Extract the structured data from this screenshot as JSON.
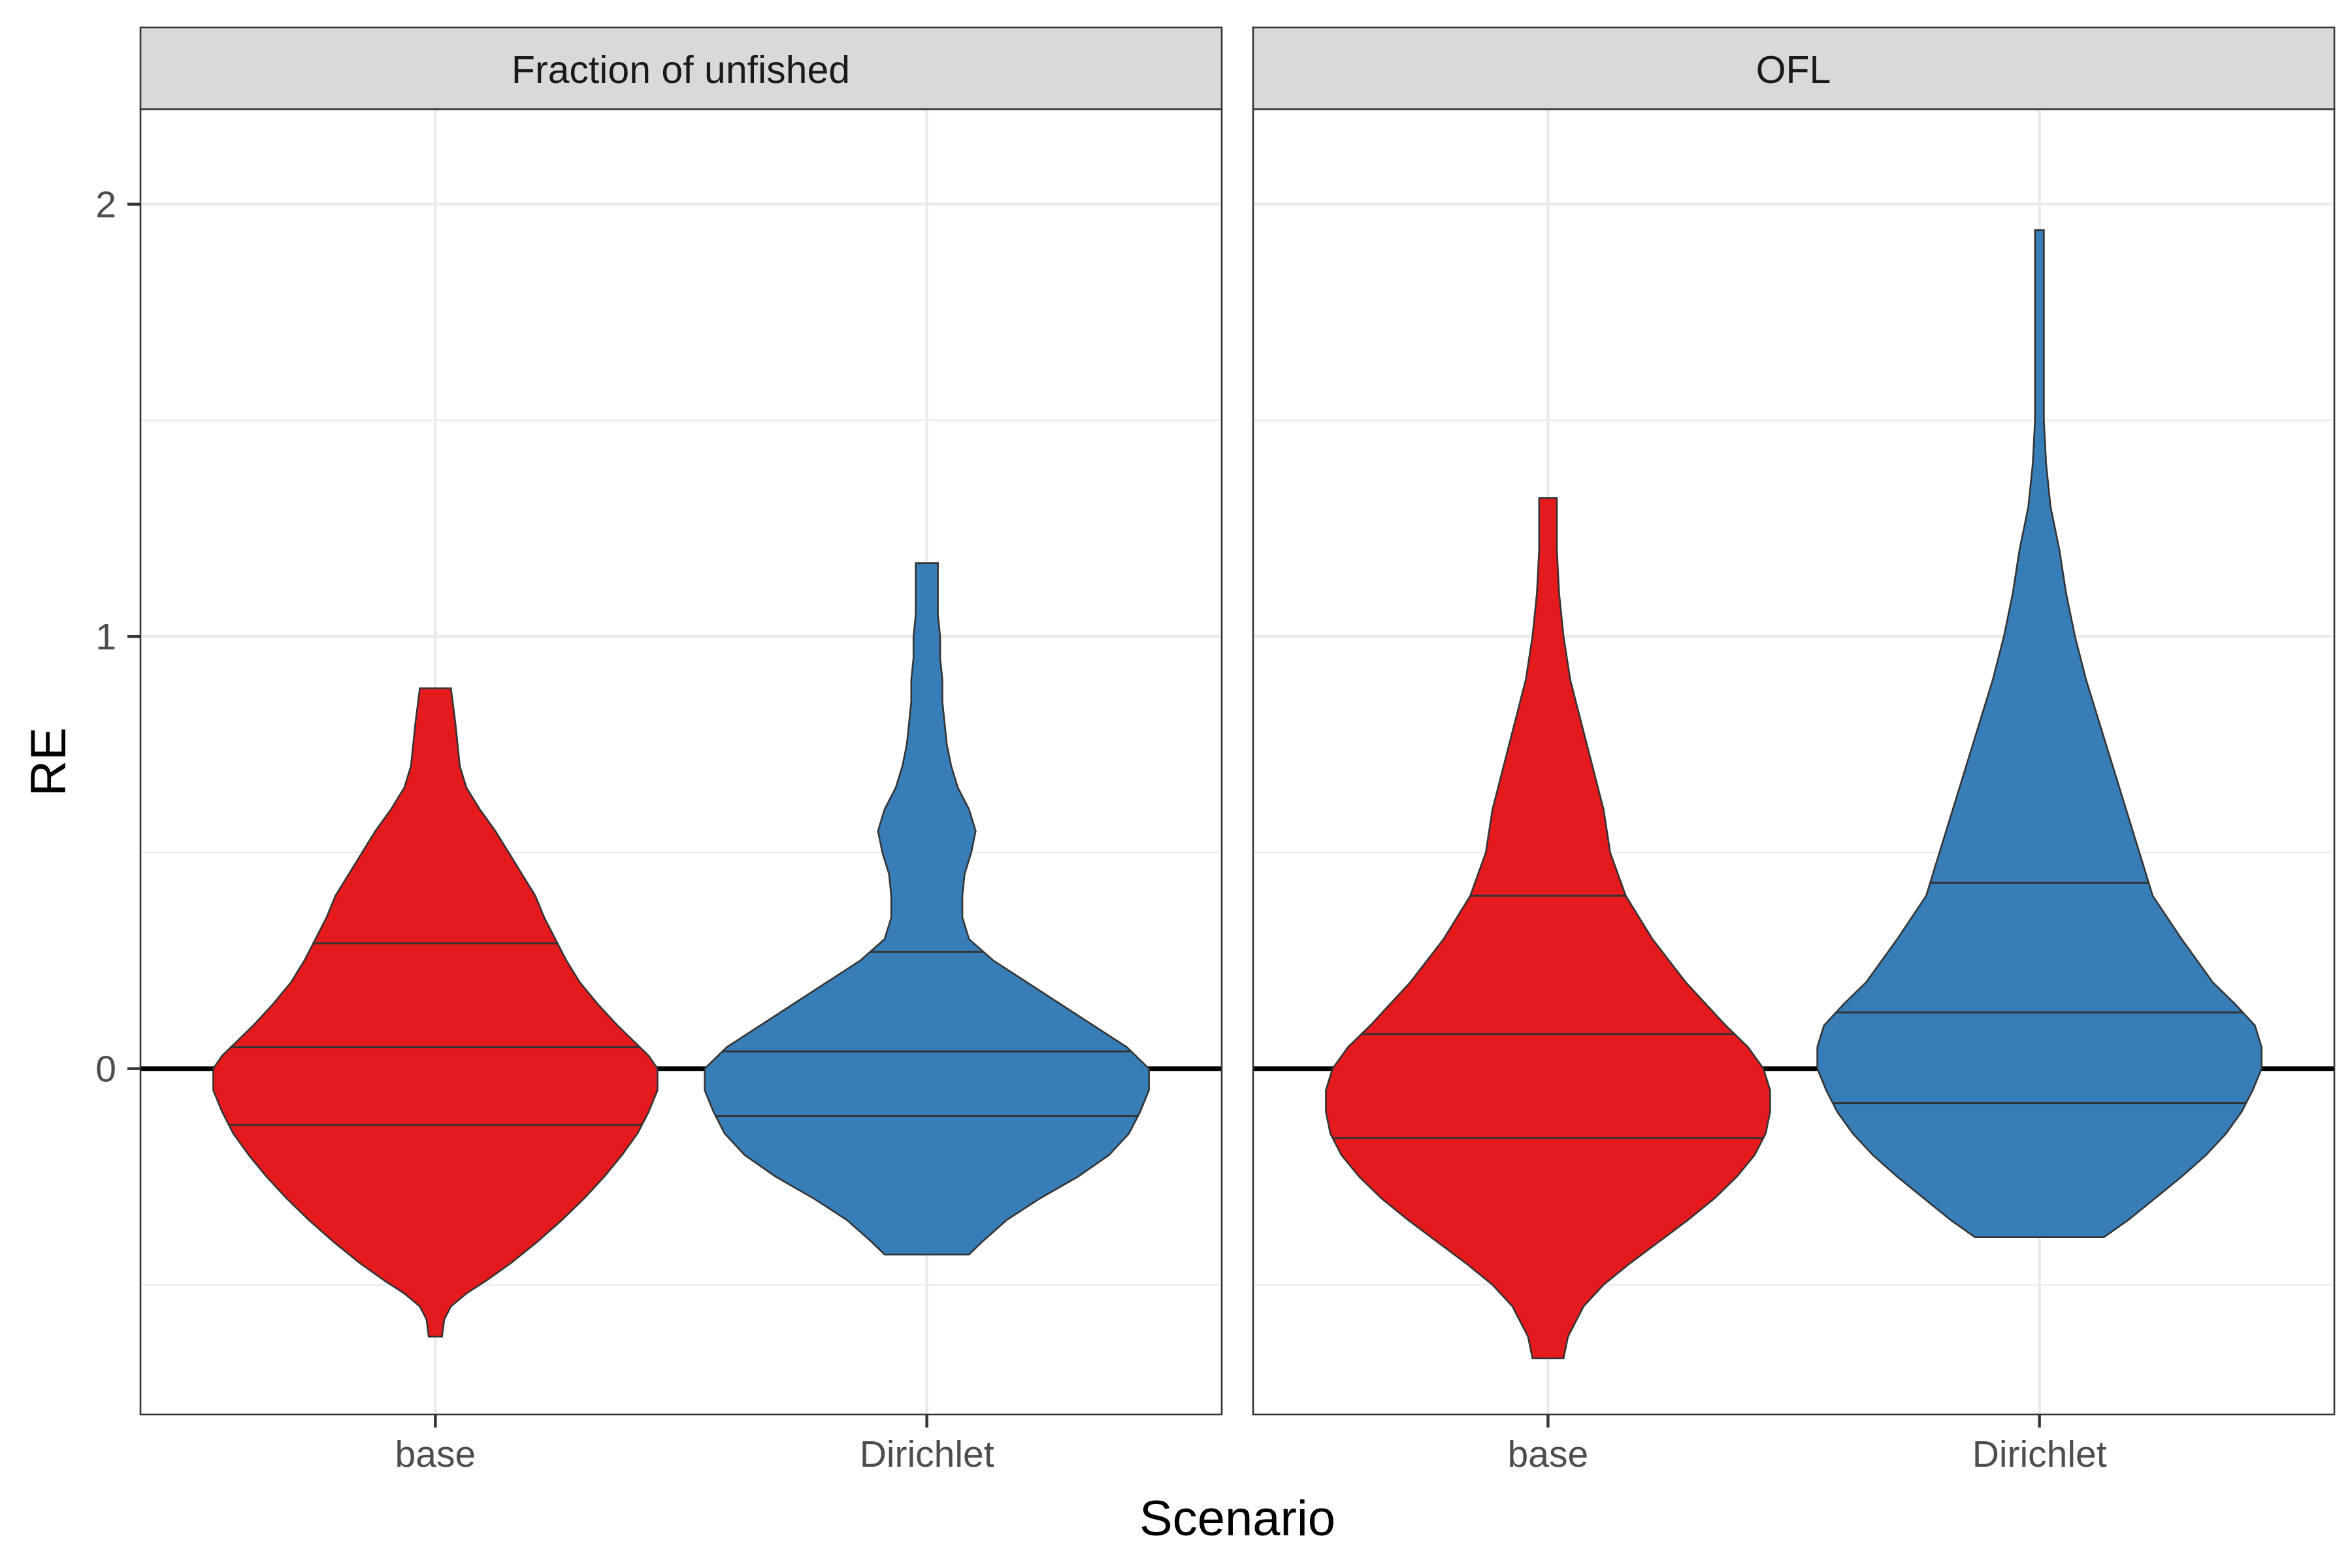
{
  "chart_data": {
    "type": "violin",
    "facets": [
      "Fraction of unfished",
      "OFL"
    ],
    "categories": [
      "base",
      "Dirichlet"
    ],
    "colors": {
      "base": "#E41A1C",
      "Dirichlet": "#377EB8"
    },
    "xlabel": "Scenario",
    "ylabel": "RE",
    "ylim": [
      -0.8,
      2.22
    ],
    "yticks": [
      0,
      1,
      2
    ],
    "yticklabels": [
      "0",
      "1",
      "2"
    ],
    "reference_line_y": 0,
    "grid": true,
    "panels": [
      {
        "facet": "Fraction of unfished",
        "violins": [
          {
            "category": "base",
            "quantiles": [
              -0.13,
              0.05,
              0.29
            ],
            "profile": [
              [
                -0.62,
                0.03
              ],
              [
                -0.58,
                0.04
              ],
              [
                -0.55,
                0.07
              ],
              [
                -0.52,
                0.14
              ],
              [
                -0.49,
                0.23
              ],
              [
                -0.45,
                0.34
              ],
              [
                -0.4,
                0.46
              ],
              [
                -0.35,
                0.57
              ],
              [
                -0.3,
                0.67
              ],
              [
                -0.25,
                0.76
              ],
              [
                -0.2,
                0.84
              ],
              [
                -0.15,
                0.91
              ],
              [
                -0.1,
                0.96
              ],
              [
                -0.05,
                1.0
              ],
              [
                0.0,
                1.0
              ],
              [
                0.03,
                0.96
              ],
              [
                0.06,
                0.9
              ],
              [
                0.1,
                0.82
              ],
              [
                0.15,
                0.73
              ],
              [
                0.2,
                0.65
              ],
              [
                0.25,
                0.59
              ],
              [
                0.3,
                0.54
              ],
              [
                0.35,
                0.49
              ],
              [
                0.4,
                0.45
              ],
              [
                0.45,
                0.39
              ],
              [
                0.5,
                0.33
              ],
              [
                0.55,
                0.27
              ],
              [
                0.6,
                0.2
              ],
              [
                0.65,
                0.14
              ],
              [
                0.7,
                0.11
              ],
              [
                0.75,
                0.1
              ],
              [
                0.8,
                0.09
              ],
              [
                0.84,
                0.08
              ],
              [
                0.88,
                0.07
              ]
            ]
          },
          {
            "category": "Dirichlet",
            "quantiles": [
              -0.11,
              0.04,
              0.27
            ],
            "profile": [
              [
                -0.43,
                0.19
              ],
              [
                -0.4,
                0.25
              ],
              [
                -0.35,
                0.36
              ],
              [
                -0.3,
                0.51
              ],
              [
                -0.25,
                0.68
              ],
              [
                -0.2,
                0.82
              ],
              [
                -0.15,
                0.91
              ],
              [
                -0.1,
                0.96
              ],
              [
                -0.05,
                1.0
              ],
              [
                0.0,
                1.0
              ],
              [
                0.05,
                0.9
              ],
              [
                0.1,
                0.75
              ],
              [
                0.15,
                0.6
              ],
              [
                0.2,
                0.45
              ],
              [
                0.25,
                0.3
              ],
              [
                0.3,
                0.19
              ],
              [
                0.35,
                0.16
              ],
              [
                0.4,
                0.16
              ],
              [
                0.45,
                0.17
              ],
              [
                0.5,
                0.2
              ],
              [
                0.55,
                0.22
              ],
              [
                0.6,
                0.19
              ],
              [
                0.65,
                0.14
              ],
              [
                0.7,
                0.11
              ],
              [
                0.75,
                0.09
              ],
              [
                0.8,
                0.08
              ],
              [
                0.85,
                0.07
              ],
              [
                0.9,
                0.07
              ],
              [
                0.95,
                0.06
              ],
              [
                1.0,
                0.06
              ],
              [
                1.05,
                0.05
              ],
              [
                1.1,
                0.05
              ],
              [
                1.17,
                0.05
              ]
            ]
          }
        ]
      },
      {
        "facet": "OFL",
        "violins": [
          {
            "category": "base",
            "quantiles": [
              -0.16,
              0.08,
              0.4
            ],
            "profile": [
              [
                -0.67,
                0.07
              ],
              [
                -0.62,
                0.09
              ],
              [
                -0.55,
                0.16
              ],
              [
                -0.5,
                0.25
              ],
              [
                -0.45,
                0.37
              ],
              [
                -0.4,
                0.5
              ],
              [
                -0.35,
                0.63
              ],
              [
                -0.3,
                0.75
              ],
              [
                -0.25,
                0.85
              ],
              [
                -0.2,
                0.93
              ],
              [
                -0.15,
                0.98
              ],
              [
                -0.1,
                1.0
              ],
              [
                -0.05,
                1.0
              ],
              [
                0.0,
                0.97
              ],
              [
                0.05,
                0.9
              ],
              [
                0.1,
                0.8
              ],
              [
                0.2,
                0.62
              ],
              [
                0.3,
                0.47
              ],
              [
                0.4,
                0.35
              ],
              [
                0.5,
                0.28
              ],
              [
                0.6,
                0.25
              ],
              [
                0.7,
                0.2
              ],
              [
                0.8,
                0.15
              ],
              [
                0.9,
                0.1
              ],
              [
                1.0,
                0.07
              ],
              [
                1.1,
                0.05
              ],
              [
                1.2,
                0.04
              ],
              [
                1.32,
                0.04
              ]
            ]
          },
          {
            "category": "Dirichlet",
            "quantiles": [
              -0.08,
              0.13,
              0.43
            ],
            "profile": [
              [
                -0.39,
                0.29
              ],
              [
                -0.35,
                0.4
              ],
              [
                -0.3,
                0.52
              ],
              [
                -0.25,
                0.64
              ],
              [
                -0.2,
                0.75
              ],
              [
                -0.15,
                0.84
              ],
              [
                -0.1,
                0.91
              ],
              [
                -0.05,
                0.96
              ],
              [
                0.0,
                1.0
              ],
              [
                0.05,
                1.0
              ],
              [
                0.1,
                0.97
              ],
              [
                0.15,
                0.88
              ],
              [
                0.2,
                0.78
              ],
              [
                0.3,
                0.64
              ],
              [
                0.4,
                0.51
              ],
              [
                0.5,
                0.45
              ],
              [
                0.6,
                0.39
              ],
              [
                0.7,
                0.33
              ],
              [
                0.8,
                0.27
              ],
              [
                0.9,
                0.21
              ],
              [
                1.0,
                0.16
              ],
              [
                1.1,
                0.12
              ],
              [
                1.2,
                0.09
              ],
              [
                1.3,
                0.05
              ],
              [
                1.4,
                0.03
              ],
              [
                1.5,
                0.02
              ],
              [
                1.6,
                0.02
              ],
              [
                1.7,
                0.02
              ],
              [
                1.8,
                0.02
              ],
              [
                1.94,
                0.02
              ]
            ]
          }
        ]
      }
    ]
  }
}
